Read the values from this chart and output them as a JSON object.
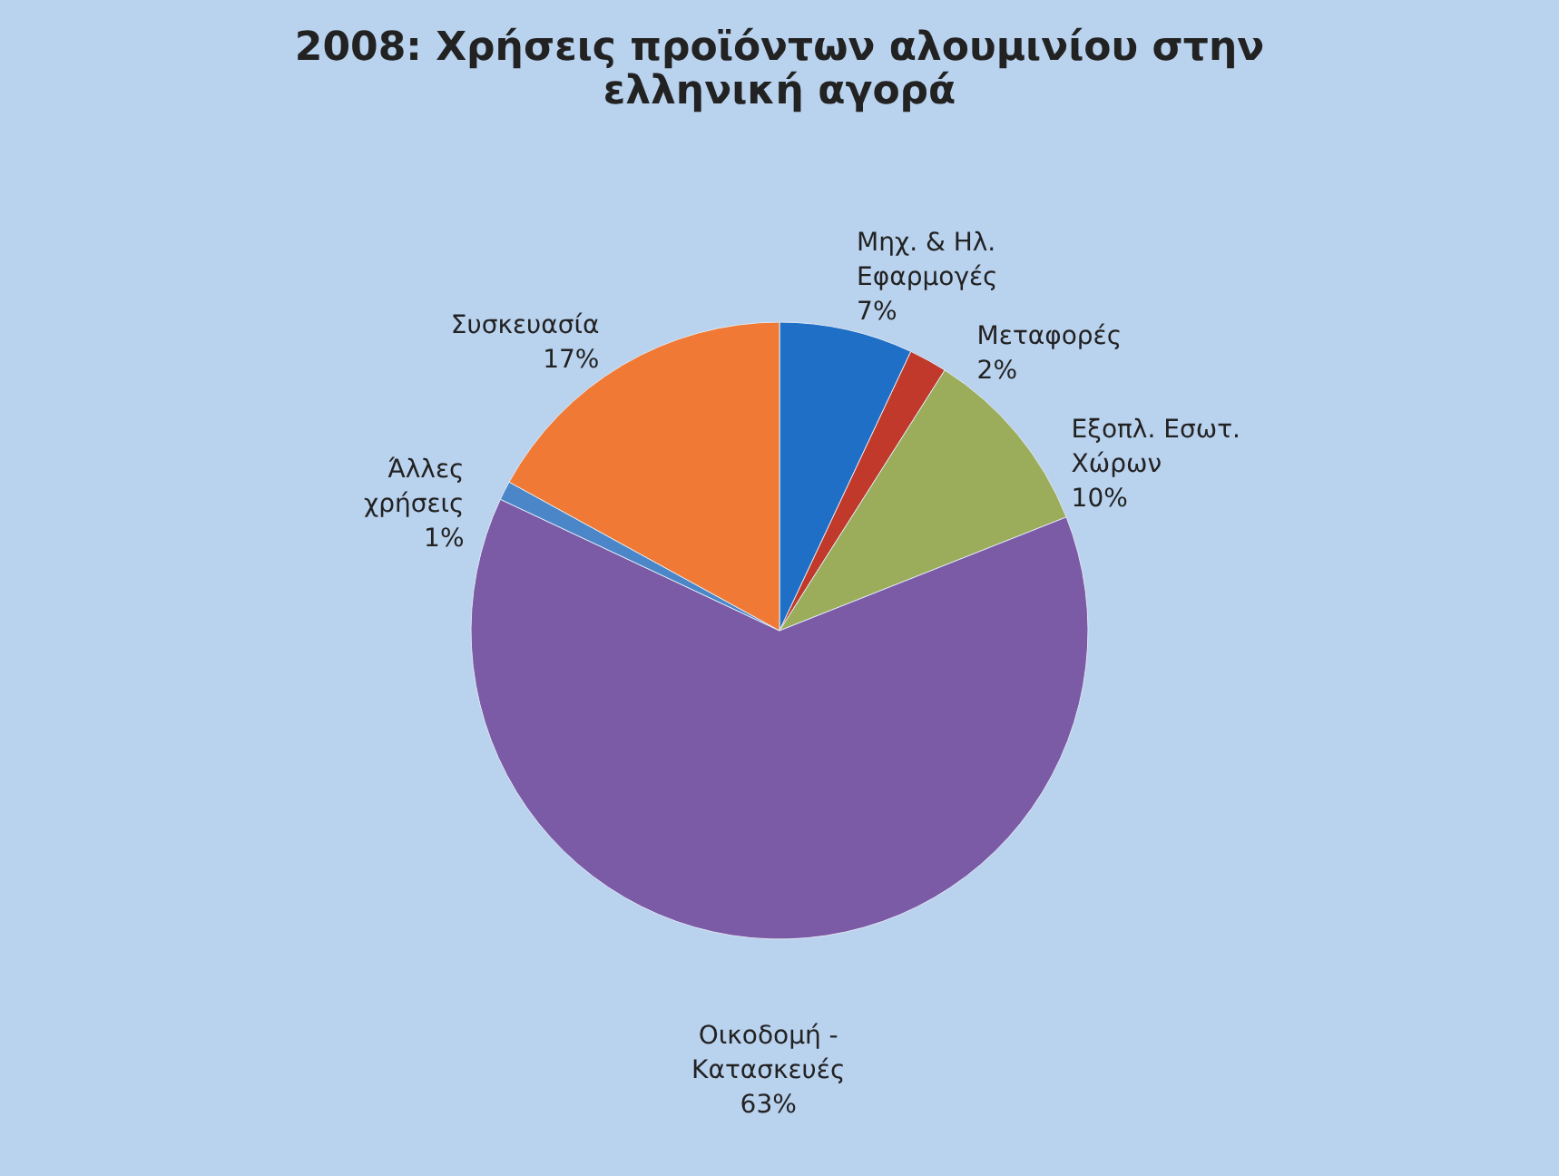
{
  "chart_data": {
    "type": "pie",
    "title": [
      "2008: Χρήσεις προϊόντων αλουμινίου στην",
      "ελληνική αγορά"
    ],
    "categories": [
      "Μηχ. & Ηλ. Εφαρμογές",
      "Μεταφορές",
      "Εξοπλ. Εσωτ. Χώρων",
      "Οικοδομή - Κατασκευές",
      "Άλλες χρήσεις",
      "Συσκευασία"
    ],
    "values": [
      7,
      2,
      10,
      63,
      1,
      17
    ],
    "value_labels": [
      "7%",
      "2%",
      "10%",
      "63%",
      "1%",
      "17%"
    ],
    "colors": [
      "#1f6fc7",
      "#c0392b",
      "#9bad5a",
      "#7b5aa6",
      "#4a86c8",
      "#f07a35"
    ],
    "legend": false
  }
}
